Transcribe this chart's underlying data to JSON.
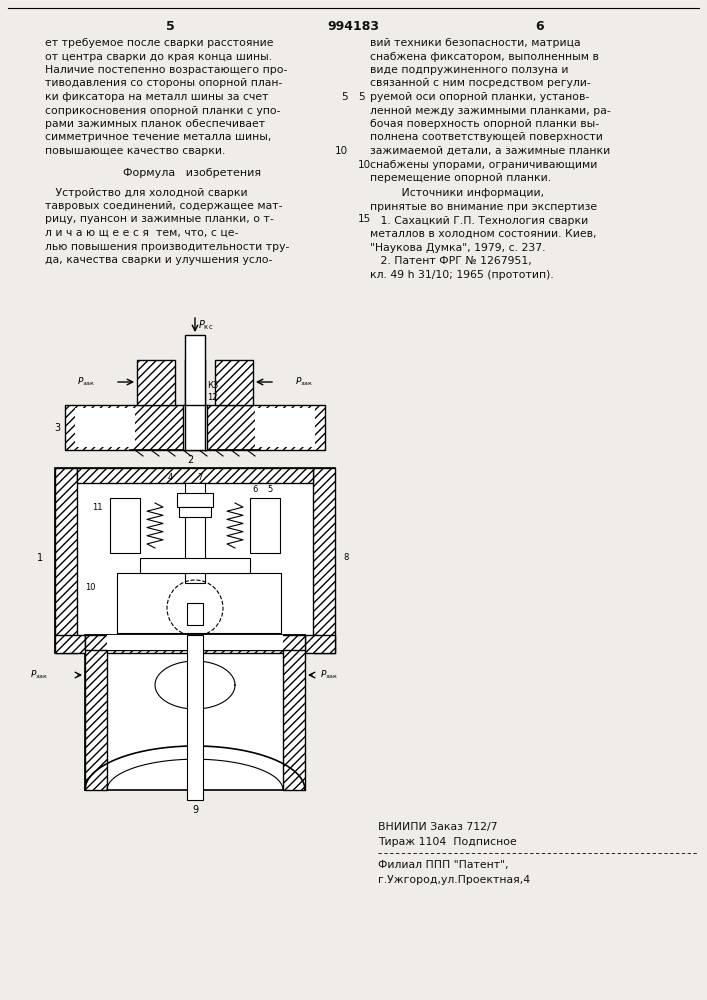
{
  "page_number_left": "5",
  "patent_number": "994183",
  "page_number_right": "6",
  "left_col_text": [
    "ет требуемое после сварки расстояние",
    "от центра сварки до края конца шины.",
    "Наличие постепенно возрастающего про-",
    "тиводавления со стороны опорной план-",
    "ки фиксатора на металл шины за счет",
    "соприкосновения опорной планки с упо-",
    "рами зажимных планок обеспечивает",
    "симметричное течение металла шины,",
    "повышающее качество сварки."
  ],
  "line_num_5_left": "5",
  "line_num_10_left": "10",
  "formula_title": "Формула   изобретения",
  "formula_text": [
    "   Устройство для холодной сварки",
    "тавровых соединений, содержащее мат-",
    "рицу, пуансон и зажимные планки, о т-",
    "л и ч а ю щ е е с я  тем, что, с це-",
    "лью повышения производительности тру-",
    "да, качества сварки и улучшения усло-"
  ],
  "line_num_15_right": "15",
  "right_col_text": [
    "вий техники безопасности, матрица",
    "снабжена фиксатором, выполненным в",
    "виде подпружиненного ползуна и",
    "связанной с ним посредством регули-",
    "руемой оси опорной планки, установ-",
    "ленной между зажимными планками, ра-",
    "бочая поверхность опорной планки вы-",
    "полнена соответствующей поверхности",
    "зажимаемой детали, а зажимные планки",
    "снабжены упорами, ограничивающими",
    "перемещение опорной планки."
  ],
  "line_num_5_right": "5",
  "line_num_10_right": "10",
  "sources_title": "         Источники информации,",
  "sources_text": [
    "принятые во внимание при экспертизе",
    "   1. Сахацкий Г.П. Технология сварки",
    "металлов в холодном состоянии. Киев,",
    "\"Наукова Думка\", 1979, с. 237.",
    "   2. Патент ФРГ № 1267951,",
    "кл. 49 h 31/10; 1965 (прототип)."
  ],
  "bottom_right_line1": "ВНИИПИ Заказ 712/7",
  "bottom_right_line2": "Тираж 1104  Подписное",
  "bottom_right_line3": "Филиал ППП \"Патент\",",
  "bottom_right_line4": "г.Ужгород,ул.Проектная,4",
  "bg_color": "#f0ede8",
  "text_color": "#111111"
}
